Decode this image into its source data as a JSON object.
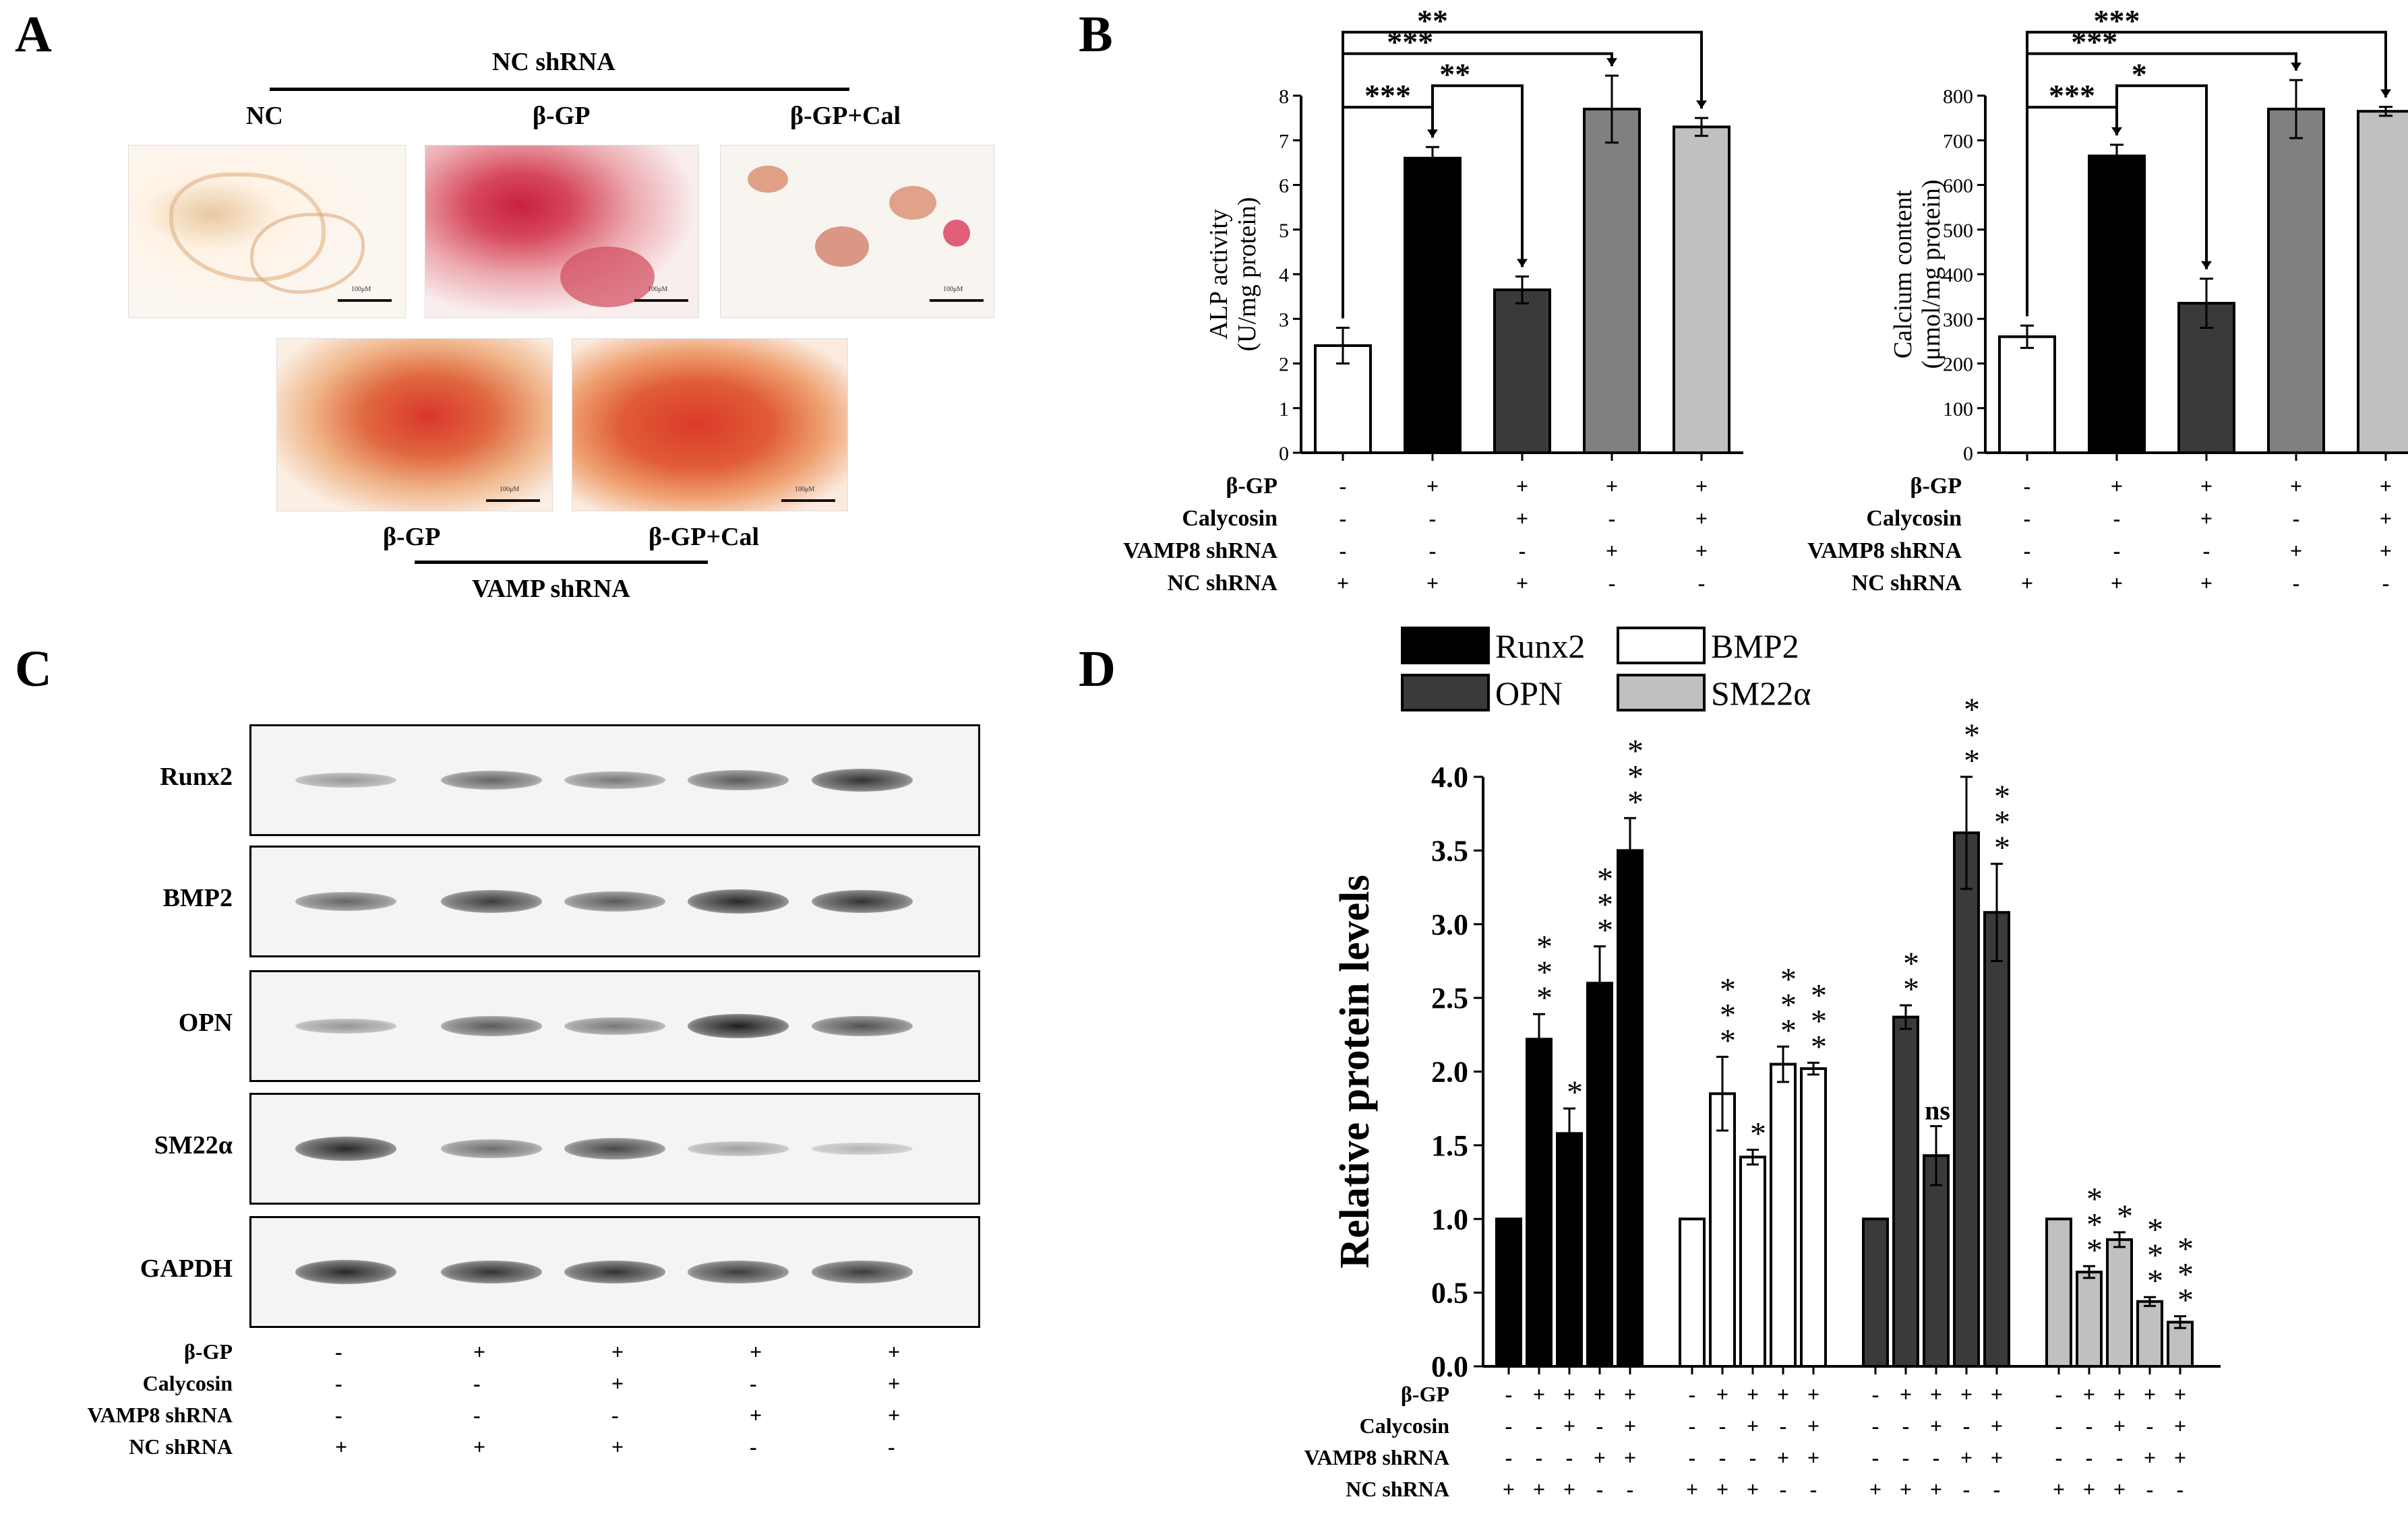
{
  "panelA": {
    "letter": "A",
    "nc_header": "NC shRNA",
    "top_labels": [
      "NC",
      "β-GP",
      "β-GP+Cal"
    ],
    "bottom_labels": [
      "β-GP",
      "β-GP+Cal"
    ],
    "vamp_header": "VAMP shRNA",
    "scale_label": "100μM"
  },
  "panelB": {
    "letter": "B",
    "treatment_rows": [
      "β-GP",
      "Calycosin",
      "VAMP8 shRNA",
      "NC shRNA"
    ],
    "treatment_signs": [
      [
        "-",
        "+",
        "+",
        "+",
        "+"
      ],
      [
        "-",
        "-",
        "+",
        "-",
        "+"
      ],
      [
        "-",
        "-",
        "-",
        "+",
        "+"
      ],
      [
        "+",
        "+",
        "+",
        "-",
        "-"
      ]
    ],
    "colors": [
      "#ffffff",
      "#000000",
      "#3a3a3a",
      "#808080",
      "#c0c0c0"
    ]
  },
  "panelC": {
    "letter": "C",
    "proteins": [
      "Runx2",
      "BMP2",
      "OPN",
      "SM22α",
      "GAPDH"
    ],
    "band_intensity": [
      [
        0.35,
        0.6,
        0.5,
        0.65,
        0.85
      ],
      [
        0.6,
        0.8,
        0.65,
        0.9,
        0.85
      ],
      [
        0.35,
        0.65,
        0.5,
        0.95,
        0.7
      ],
      [
        0.9,
        0.55,
        0.75,
        0.3,
        0.2
      ],
      [
        0.9,
        0.85,
        0.85,
        0.8,
        0.8
      ]
    ],
    "treatment_rows": [
      "β-GP",
      "Calycosin",
      "VAMP8 shRNA",
      "NC shRNA"
    ],
    "treatment_signs": [
      [
        "-",
        "+",
        "+",
        "+",
        "+"
      ],
      [
        "-",
        "-",
        "+",
        "-",
        "+"
      ],
      [
        "-",
        "-",
        "-",
        "+",
        "+"
      ],
      [
        "+",
        "+",
        "+",
        "-",
        "-"
      ]
    ]
  },
  "panelD": {
    "letter": "D",
    "treatment_rows": [
      "β-GP",
      "Calycosin",
      "VAMP8 shRNA",
      "NC shRNA"
    ],
    "treatment_signs": [
      [
        "-",
        "+",
        "+",
        "+",
        "+"
      ],
      [
        "-",
        "-",
        "+",
        "-",
        "+"
      ],
      [
        "-",
        "-",
        "-",
        "+",
        "+"
      ],
      [
        "+",
        "+",
        "+",
        "-",
        "-"
      ]
    ]
  },
  "chart_data": [
    {
      "id": "alp",
      "type": "bar",
      "ylabel": "ALP activity\n(U/mg protein)",
      "ylim": [
        0,
        8
      ],
      "yticks": [
        0,
        1,
        2,
        3,
        4,
        5,
        6,
        7,
        8
      ],
      "values": [
        2.4,
        6.6,
        3.65,
        7.7,
        7.3
      ],
      "errors": [
        0.4,
        0.25,
        0.3,
        0.75,
        0.2
      ],
      "significance": [
        {
          "from": 0,
          "to": 1,
          "label": "***"
        },
        {
          "from": 1,
          "to": 2,
          "label": "**"
        },
        {
          "from": 0,
          "to": 3,
          "label": "***"
        },
        {
          "from": 0,
          "to": 4,
          "label": "**"
        }
      ]
    },
    {
      "id": "calcium",
      "type": "bar",
      "ylabel": "Calcium content\n(μmol/mg protein)",
      "ylim": [
        0,
        800
      ],
      "yticks": [
        0,
        100,
        200,
        300,
        400,
        500,
        600,
        700,
        800
      ],
      "values": [
        260,
        665,
        335,
        770,
        765
      ],
      "errors": [
        25,
        25,
        55,
        65,
        10
      ],
      "significance": [
        {
          "from": 0,
          "to": 1,
          "label": "***"
        },
        {
          "from": 1,
          "to": 2,
          "label": "*"
        },
        {
          "from": 0,
          "to": 3,
          "label": "***"
        },
        {
          "from": 0,
          "to": 4,
          "label": "***"
        }
      ]
    },
    {
      "id": "protein",
      "type": "bar",
      "ylabel": "Relative protein levels",
      "ylim": [
        0,
        4.0
      ],
      "yticks": [
        "0.0",
        "0.5",
        "1.0",
        "1.5",
        "2.0",
        "2.5",
        "3.0",
        "3.5",
        "4.0"
      ],
      "series": [
        {
          "name": "Runx2",
          "color": "#000000",
          "values": [
            1.0,
            2.22,
            1.58,
            2.6,
            3.5
          ],
          "errors": [
            0,
            0.17,
            0.17,
            0.25,
            0.22
          ],
          "stars": [
            "",
            "***",
            "*",
            "***",
            "***"
          ]
        },
        {
          "name": "BMP2",
          "color": "#ffffff",
          "values": [
            1.0,
            1.85,
            1.42,
            2.05,
            2.02
          ],
          "errors": [
            0,
            0.25,
            0.05,
            0.12,
            0.04
          ],
          "stars": [
            "",
            "***",
            "*",
            "***",
            "***"
          ]
        },
        {
          "name": "OPN",
          "color": "#3a3a3a",
          "values": [
            1.0,
            2.37,
            1.43,
            3.62,
            3.08
          ],
          "errors": [
            0,
            0.08,
            0.2,
            0.38,
            0.33
          ],
          "stars": [
            "",
            "**",
            "ns",
            "***",
            "***"
          ]
        },
        {
          "name": "SM22α",
          "color": "#c0c0c0",
          "values": [
            1.0,
            0.64,
            0.86,
            0.44,
            0.3
          ],
          "errors": [
            0,
            0.04,
            0.05,
            0.03,
            0.04
          ],
          "stars": [
            "",
            "***",
            "*",
            "***",
            "***"
          ]
        }
      ]
    }
  ]
}
